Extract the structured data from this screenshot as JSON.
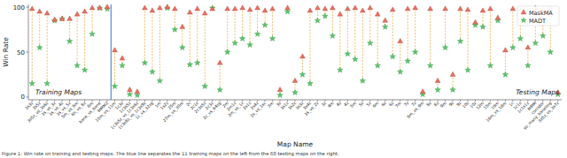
{
  "chart_data": {
    "type": "scatter",
    "xlabel": "Map Name",
    "ylabel": "Win Rate",
    "caption": "Figure 1: Win rate on training and testing maps. The blue line separates the 11 training maps on the left from the 60 testing maps on the right.",
    "annotations": [
      "Training Maps",
      "Testing Maps"
    ],
    "training_map_count": 11,
    "legend": "upper right",
    "ylim": [
      -3,
      103
    ],
    "yticks": [
      0,
      50,
      100
    ],
    "categories": [
      "2s3z",
      "3s5z",
      "3s5z_vs_3s6z",
      "3s_vs_3z",
      "3s_vs_4z",
      "3s_vs_5z",
      "5m_vs_6m",
      "6h_vs_8z",
      "8m",
      "bane_vs_bane",
      "MMM2",
      "10m_vs_11m",
      "1c3s",
      "1c3s5z",
      "1c3s5z_vs_1c3s6z",
      "1c3s8z_vs_1c3s9z",
      "1c_vs_32zg",
      "1m",
      "1s2z",
      "25m",
      "27m_vs_30m",
      "2c",
      "2c1s",
      "2c3s5z",
      "2c3z",
      "2c_vs_64zg",
      "2m",
      "2m1z",
      "2m_vs_1z",
      "2s1z",
      "2s4z",
      "2s_vs_1sc",
      "3m",
      "3s",
      "3s1z",
      "3s2z",
      "3s3z",
      "3s4z",
      "3s_vs_2z",
      "3z",
      "4m",
      "4s",
      "4z",
      "5m",
      "5s",
      "5z",
      "6m",
      "6s",
      "6z",
      "7m",
      "7s",
      "7z",
      "8m_vs_9m",
      "8s",
      "8z",
      "9m",
      "9s",
      "9z",
      "10s",
      "10z",
      "12m",
      "15m",
      "16m",
      "16m_vs_18m",
      "1c",
      "1c1s",
      "1c1s1z",
      "MMM",
      "corridor",
      "so_many_baneling",
      "3s5z_vs_3s7z"
    ],
    "series": [
      {
        "name": "MaskMA",
        "color": "#e8705f",
        "marker": "triangle",
        "values": [
          98,
          95,
          93,
          86,
          87,
          87,
          92,
          95,
          99,
          99,
          100,
          52,
          43,
          8,
          6,
          99,
          96,
          99,
          100,
          98,
          78,
          94,
          98,
          93,
          98,
          38,
          98,
          98,
          99,
          97,
          99,
          96,
          98,
          8,
          99,
          18,
          45,
          96,
          99,
          98,
          99,
          92,
          98,
          99,
          96,
          99,
          92,
          85,
          97,
          62,
          98,
          99,
          6,
          98,
          18,
          98,
          25,
          98,
          97,
          83,
          96,
          98,
          88,
          52,
          98,
          97,
          55,
          99,
          97,
          98,
          5
        ]
      },
      {
        "name": "MADT",
        "color": "#5cc46a",
        "marker": "star",
        "values": [
          15,
          55,
          15,
          85,
          87,
          62,
          35,
          30,
          70,
          99,
          98,
          12,
          35,
          3,
          2,
          38,
          28,
          18,
          99,
          75,
          55,
          36,
          38,
          12,
          99,
          8,
          50,
          60,
          65,
          58,
          70,
          80,
          65,
          2,
          95,
          5,
          25,
          15,
          85,
          90,
          68,
          30,
          48,
          42,
          18,
          60,
          35,
          78,
          45,
          28,
          40,
          50,
          3,
          35,
          8,
          55,
          8,
          62,
          30,
          80,
          78,
          35,
          85,
          25,
          55,
          65,
          35,
          60,
          68,
          50,
          3
        ]
      }
    ]
  }
}
